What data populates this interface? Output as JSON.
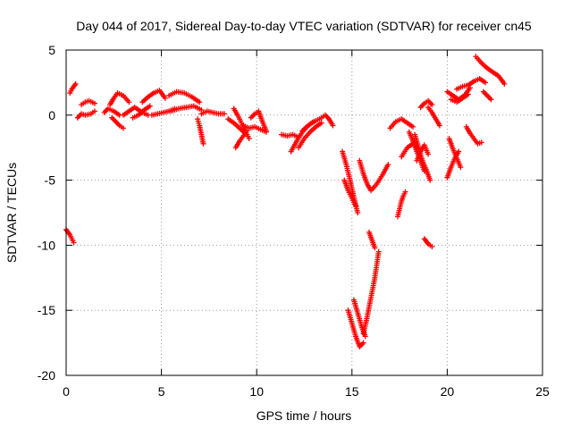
{
  "chart_data": {
    "type": "scatter",
    "title": "Day 044 of 2017, Sidereal Day-to-day VTEC variation (SDTVAR) for receiver cn45",
    "xlabel": "GPS time / hours",
    "ylabel": "SDTVAR / TECUs",
    "xlim": [
      0,
      25
    ],
    "ylim": [
      -20,
      5
    ],
    "xticks": [
      "0",
      "5",
      "10",
      "15",
      "20",
      "25"
    ],
    "yticks": [
      "5",
      "0",
      "-5",
      "-10",
      "-15",
      "-20"
    ],
    "grid": true,
    "marker": "+",
    "color": "#ff0000",
    "series": [
      {
        "name": "SDTVAR",
        "segments": [
          {
            "x": [
              0.0,
              0.1,
              0.2,
              0.3,
              0.4
            ],
            "y": [
              -8.8,
              -9.0,
              -9.2,
              -9.5,
              -9.8
            ]
          },
          {
            "x": [
              0.2,
              0.3,
              0.4,
              0.5
            ],
            "y": [
              1.7,
              2.0,
              2.2,
              2.4
            ]
          },
          {
            "x": [
              0.6,
              0.8,
              1.0,
              1.3,
              1.5
            ],
            "y": [
              -0.2,
              0.1,
              0.0,
              0.1,
              0.3
            ]
          },
          {
            "x": [
              0.8,
              1.0,
              1.2,
              1.5
            ],
            "y": [
              0.8,
              1.0,
              1.1,
              0.9
            ]
          },
          {
            "x": [
              2.0,
              2.2,
              2.5,
              2.8
            ],
            "y": [
              0.2,
              0.5,
              0.3,
              0.0
            ]
          },
          {
            "x": [
              2.3,
              2.5,
              2.7,
              3.0,
              3.3
            ],
            "y": [
              0.8,
              1.3,
              1.7,
              1.5,
              1.0
            ]
          },
          {
            "x": [
              2.4,
              2.6,
              2.8,
              3.0
            ],
            "y": [
              -0.2,
              -0.5,
              -0.8,
              -1.0
            ]
          },
          {
            "x": [
              3.0,
              3.3,
              3.6,
              4.0,
              4.3
            ],
            "y": [
              0.0,
              0.3,
              0.6,
              0.2,
              0.0
            ]
          },
          {
            "x": [
              3.5,
              3.8,
              4.1,
              4.4
            ],
            "y": [
              -0.2,
              0.0,
              0.4,
              0.7
            ]
          },
          {
            "x": [
              4.0,
              4.3,
              4.6,
              4.9,
              5.2
            ],
            "y": [
              1.0,
              1.4,
              1.7,
              1.9,
              1.3
            ]
          },
          {
            "x": [
              4.5,
              4.8,
              5.1,
              5.4,
              5.7
            ],
            "y": [
              0.0,
              0.1,
              0.2,
              0.3,
              0.5
            ]
          },
          {
            "x": [
              5.4,
              5.8,
              6.2,
              6.6,
              7.0
            ],
            "y": [
              1.5,
              1.8,
              1.7,
              1.4,
              1.0
            ]
          },
          {
            "x": [
              5.5,
              5.9,
              6.3,
              6.7,
              7.1
            ],
            "y": [
              0.3,
              0.5,
              0.6,
              0.7,
              0.4
            ]
          },
          {
            "x": [
              6.9,
              7.0,
              7.1,
              7.2
            ],
            "y": [
              -0.3,
              -0.8,
              -1.5,
              -2.2
            ]
          },
          {
            "x": [
              7.1,
              7.4,
              7.7,
              8.0,
              8.3
            ],
            "y": [
              0.1,
              0.3,
              0.2,
              0.1,
              0.1
            ]
          },
          {
            "x": [
              8.5,
              8.8,
              9.1,
              9.4
            ],
            "y": [
              -0.3,
              -0.6,
              -1.0,
              -1.4
            ]
          },
          {
            "x": [
              8.8,
              9.0,
              9.2,
              9.4,
              9.6
            ],
            "y": [
              0.5,
              0.0,
              -0.6,
              -1.2,
              -1.8
            ]
          },
          {
            "x": [
              8.9,
              9.1,
              9.3,
              9.5
            ],
            "y": [
              -2.5,
              -2.0,
              -1.6,
              -1.2
            ]
          },
          {
            "x": [
              9.3,
              9.6,
              9.9,
              10.2,
              10.5
            ],
            "y": [
              -0.8,
              -1.0,
              -0.9,
              -1.1,
              -1.3
            ]
          },
          {
            "x": [
              9.7,
              9.9,
              10.1,
              10.3,
              10.5
            ],
            "y": [
              -0.2,
              0.1,
              0.3,
              -0.5,
              -1.2
            ]
          },
          {
            "x": [
              11.3,
              11.6,
              11.9,
              12.2
            ],
            "y": [
              -1.5,
              -1.6,
              -1.5,
              -1.7
            ]
          },
          {
            "x": [
              11.8,
              12.1,
              12.4,
              12.7,
              13.0
            ],
            "y": [
              -2.8,
              -2.0,
              -1.3,
              -0.8,
              -0.5
            ]
          },
          {
            "x": [
              12.2,
              12.5,
              12.8,
              13.1,
              13.4
            ],
            "y": [
              -2.5,
              -1.8,
              -1.3,
              -0.9,
              -0.6
            ]
          },
          {
            "x": [
              12.4,
              12.7,
              13.0,
              13.3
            ],
            "y": [
              -1.2,
              -0.8,
              -0.5,
              -0.3
            ]
          },
          {
            "x": [
              13.4,
              13.6,
              13.8,
              14.0
            ],
            "y": [
              -0.2,
              0.0,
              -0.3,
              -0.8
            ]
          },
          {
            "x": [
              14.5,
              14.7,
              14.9,
              15.1,
              15.3
            ],
            "y": [
              -2.8,
              -3.8,
              -5.0,
              -6.3,
              -7.5
            ]
          },
          {
            "x": [
              14.6,
              14.8,
              15.0,
              15.2
            ],
            "y": [
              -5.0,
              -5.8,
              -6.4,
              -7.0
            ]
          },
          {
            "x": [
              14.8,
              15.0,
              15.2,
              15.4,
              15.6
            ],
            "y": [
              -15.0,
              -16.0,
              -17.0,
              -17.8,
              -17.5
            ]
          },
          {
            "x": [
              15.1,
              15.3,
              15.5,
              15.7
            ],
            "y": [
              -14.2,
              -15.2,
              -16.2,
              -17.0
            ]
          },
          {
            "x": [
              15.6,
              15.8,
              16.0,
              16.2,
              16.4
            ],
            "y": [
              -16.8,
              -15.5,
              -14.0,
              -12.5,
              -10.5
            ]
          },
          {
            "x": [
              15.4,
              15.6,
              15.8,
              16.0,
              16.3,
              16.6,
              16.9
            ],
            "y": [
              -3.5,
              -4.5,
              -5.3,
              -5.8,
              -5.3,
              -4.6,
              -3.8
            ]
          },
          {
            "x": [
              15.9,
              16.0,
              16.1,
              16.2
            ],
            "y": [
              -9.0,
              -9.4,
              -9.8,
              -10.2
            ]
          },
          {
            "x": [
              17.0,
              17.3,
              17.6,
              17.9,
              18.2
            ],
            "y": [
              -1.0,
              -0.5,
              -0.3,
              -0.6,
              -0.9
            ]
          },
          {
            "x": [
              17.4,
              17.5,
              17.6,
              17.7,
              17.8
            ],
            "y": [
              -7.8,
              -7.2,
              -6.6,
              -6.2,
              -5.9
            ]
          },
          {
            "x": [
              17.6,
              17.9,
              18.2,
              18.5
            ],
            "y": [
              -3.2,
              -2.5,
              -2.2,
              -2.6
            ]
          },
          {
            "x": [
              18.0,
              18.2,
              18.4,
              18.6,
              18.8
            ],
            "y": [
              -1.3,
              -2.0,
              -2.8,
              -3.5,
              -4.3
            ]
          },
          {
            "x": [
              18.3,
              18.5,
              18.7,
              18.9,
              19.1
            ],
            "y": [
              -1.5,
              -2.5,
              -3.5,
              -4.2,
              -5.0
            ]
          },
          {
            "x": [
              18.4,
              18.6,
              18.8,
              19.0
            ],
            "y": [
              -3.5,
              -2.8,
              -2.3,
              -3.0
            ]
          },
          {
            "x": [
              18.6,
              18.8,
              19.0,
              19.2
            ],
            "y": [
              0.6,
              0.9,
              1.1,
              0.8
            ]
          },
          {
            "x": [
              18.8,
              18.9,
              19.0,
              19.1,
              19.2
            ],
            "y": [
              -9.5,
              -9.7,
              -9.9,
              -10.0,
              -10.1
            ]
          },
          {
            "x": [
              19.0,
              19.2,
              19.4,
              19.6
            ],
            "y": [
              0.6,
              0.2,
              -0.3,
              -0.8
            ]
          },
          {
            "x": [
              20.0,
              20.2,
              20.4,
              20.6
            ],
            "y": [
              -4.8,
              -4.0,
              -3.3,
              -2.8
            ]
          },
          {
            "x": [
              20.1,
              20.3,
              20.5,
              20.7
            ],
            "y": [
              -1.8,
              -2.6,
              -3.3,
              -4.0
            ]
          },
          {
            "x": [
              20.0,
              20.3,
              20.6,
              20.9,
              21.2
            ],
            "y": [
              1.8,
              1.5,
              1.2,
              1.5,
              2.1
            ]
          },
          {
            "x": [
              20.2,
              20.5,
              20.8,
              21.1
            ],
            "y": [
              1.2,
              1.0,
              1.3,
              1.6
            ]
          },
          {
            "x": [
              20.5,
              20.8,
              21.1,
              21.4,
              21.7,
              22.0
            ],
            "y": [
              2.0,
              2.2,
              2.3,
              2.6,
              2.8,
              2.5
            ]
          },
          {
            "x": [
              21.0,
              21.2,
              21.4,
              21.6,
              21.8
            ],
            "y": [
              -0.9,
              -1.4,
              -1.8,
              -2.2,
              -2.1
            ]
          },
          {
            "x": [
              21.5,
              21.8,
              22.1,
              22.4,
              22.7,
              23.0
            ],
            "y": [
              4.5,
              4.0,
              3.6,
              3.3,
              3.0,
              2.4
            ]
          },
          {
            "x": [
              21.9,
              22.1,
              22.3
            ],
            "y": [
              1.8,
              1.5,
              1.2
            ]
          }
        ]
      }
    ]
  }
}
